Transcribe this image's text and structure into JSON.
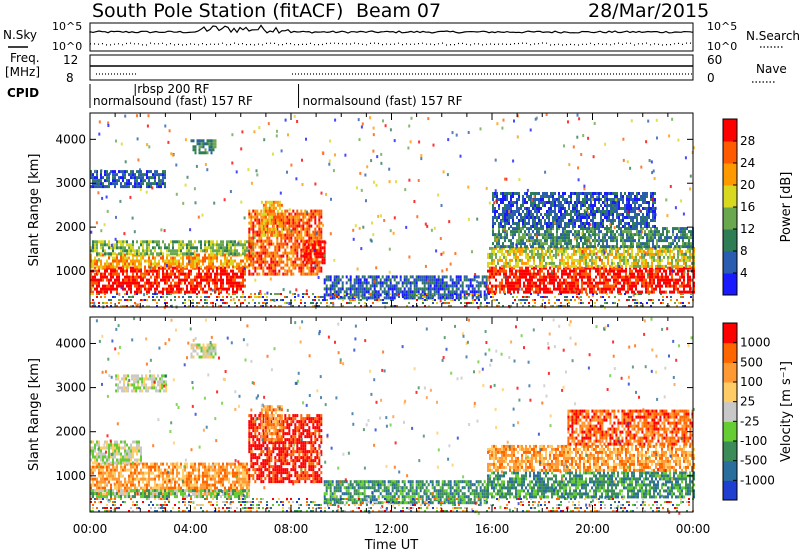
{
  "header": {
    "station": "South Pole Station (fitACF)",
    "beam": "Beam 07",
    "date": "28/Mar/2015"
  },
  "top_panels": {
    "nsky_label": "N.Sky",
    "nsky_ticks": [
      "10^5",
      "10^0"
    ],
    "nsearch_label": "N.Search",
    "nsearch_ticks": [
      "10^5",
      "10^0"
    ],
    "freq_label_1": "Freq.",
    "freq_label_2": "[MHz]",
    "freq_ticks": [
      "12",
      "8"
    ],
    "nave_label": "Nave",
    "nave_ticks": [
      "60",
      "0"
    ],
    "cpid_label": "CPID",
    "cpid_segments": [
      {
        "name": "normalsound (fast) 157 RF",
        "start_h": 0,
        "end_h": 8.3
      },
      {
        "name": "rbsp 200 RF",
        "start_h": 1.8,
        "end_h": 2.1
      },
      {
        "name": "normalsound (fast) 157 RF",
        "start_h": 8.3,
        "end_h": 24
      }
    ]
  },
  "chart_data": [
    {
      "type": "heatmap",
      "name": "power",
      "ylabel": "Slant Range [km]",
      "yticks": [
        1000,
        2000,
        3000,
        4000
      ],
      "ylim": [
        180,
        4600
      ],
      "xlim_hours": [
        0,
        24
      ],
      "colorbar": {
        "label": "Power [dB]",
        "ticks": [
          "4",
          "8",
          "12",
          "16",
          "20",
          "24",
          "28"
        ],
        "colors": [
          "#1a1aff",
          "#2a5cb0",
          "#2e7d55",
          "#6aa84f",
          "#d8d820",
          "#ff9900",
          "#ff5a00",
          "#ff0000"
        ],
        "range": [
          0,
          30
        ]
      },
      "regions": [
        {
          "t0": 0.0,
          "t1": 6.2,
          "r0": 550,
          "r1": 1100,
          "level": 7
        },
        {
          "t0": 0.0,
          "t1": 6.5,
          "r0": 1100,
          "r1": 1400,
          "level": 5
        },
        {
          "t0": 0.0,
          "t1": 6.5,
          "r0": 1400,
          "r1": 1700,
          "level": 3
        },
        {
          "t0": 6.3,
          "t1": 9.2,
          "r0": 900,
          "r1": 2400,
          "level": 6
        },
        {
          "t0": 6.8,
          "t1": 7.6,
          "r0": 1800,
          "r1": 2600,
          "level": 5
        },
        {
          "t0": 8.5,
          "t1": 9.3,
          "r0": 1200,
          "r1": 1700,
          "level": 7
        },
        {
          "t0": 9.3,
          "t1": 15.8,
          "r0": 400,
          "r1": 900,
          "level": 1
        },
        {
          "t0": 15.8,
          "t1": 24.0,
          "r0": 550,
          "r1": 1100,
          "level": 7
        },
        {
          "t0": 15.8,
          "t1": 24.0,
          "r0": 1100,
          "r1": 1550,
          "level": 4
        },
        {
          "t0": 16.0,
          "t1": 24.0,
          "r0": 1550,
          "r1": 2000,
          "level": 2
        },
        {
          "t0": 0.0,
          "t1": 3.0,
          "r0": 2900,
          "r1": 3300,
          "level": 1
        },
        {
          "t0": 4.0,
          "t1": 5.0,
          "r0": 3700,
          "r1": 4000,
          "level": 2
        },
        {
          "t0": 16.0,
          "t1": 22.5,
          "r0": 2000,
          "r1": 2800,
          "level": 1
        }
      ]
    },
    {
      "type": "heatmap",
      "name": "velocity",
      "ylabel": "Slant Range [km]",
      "xlabel": "Time UT",
      "xticks": [
        "00:00",
        "04:00",
        "08:00",
        "12:00",
        "16:00",
        "20:00",
        "00:00"
      ],
      "yticks": [
        1000,
        2000,
        3000,
        4000
      ],
      "ylim": [
        180,
        4600
      ],
      "xlim_hours": [
        0,
        24
      ],
      "colorbar": {
        "label": "Velocity [m s⁻¹]",
        "ticks": [
          "1000",
          "500",
          "100",
          "25",
          "-25",
          "-100",
          "-500",
          "-1000"
        ],
        "colors": [
          "#1e3fd0",
          "#2a6e9e",
          "#3c8c5a",
          "#66cc33",
          "#c8c8c8",
          "#ffcc66",
          "#ff9933",
          "#ff6600",
          "#ff0000"
        ],
        "range": [
          -1000,
          1000
        ]
      },
      "regions": [
        {
          "t0": 0.0,
          "t1": 6.3,
          "r0": 600,
          "r1": 1300,
          "level": 6
        },
        {
          "t0": 0.0,
          "t1": 2.0,
          "r0": 1300,
          "r1": 1800,
          "level": 4
        },
        {
          "t0": 0.0,
          "t1": 6.3,
          "r0": 500,
          "r1": 700,
          "level": 3
        },
        {
          "t0": 6.3,
          "t1": 9.2,
          "r0": 900,
          "r1": 2400,
          "level": 8
        },
        {
          "t0": 6.8,
          "t1": 7.6,
          "r0": 1800,
          "r1": 2600,
          "level": 6
        },
        {
          "t0": 9.3,
          "t1": 15.8,
          "r0": 400,
          "r1": 900,
          "level": 2
        },
        {
          "t0": 15.8,
          "t1": 24.0,
          "r0": 550,
          "r1": 1100,
          "level": 2
        },
        {
          "t0": 15.8,
          "t1": 24.0,
          "r0": 1100,
          "r1": 1700,
          "level": 6
        },
        {
          "t0": 19.0,
          "t1": 24.0,
          "r0": 1700,
          "r1": 2500,
          "level": 7
        },
        {
          "t0": 1.0,
          "t1": 3.0,
          "r0": 2950,
          "r1": 3300,
          "level": 4
        },
        {
          "t0": 4.0,
          "t1": 5.0,
          "r0": 3700,
          "r1": 4000,
          "level": 4
        }
      ]
    }
  ]
}
